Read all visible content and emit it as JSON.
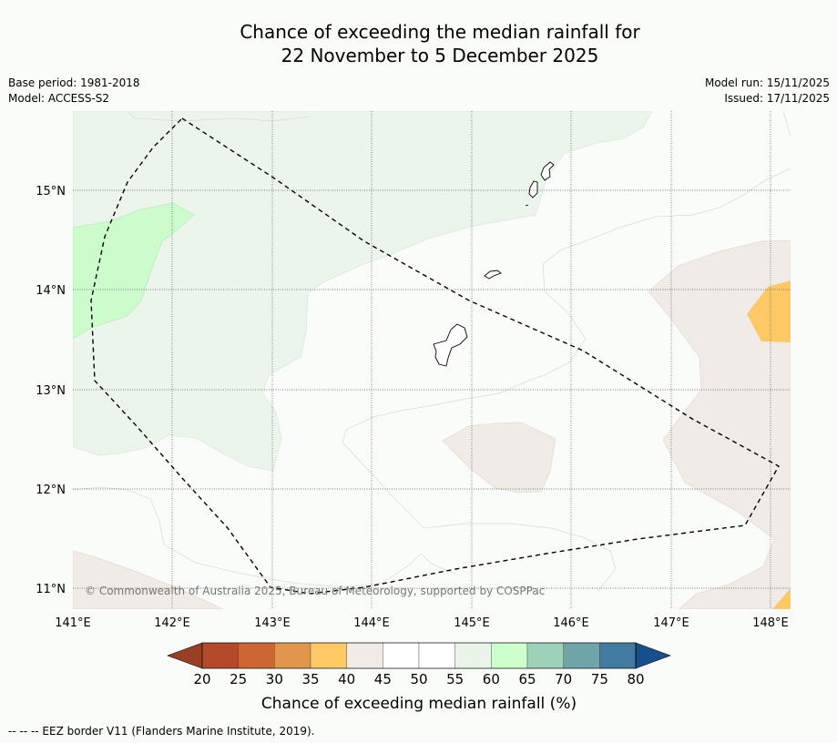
{
  "title": {
    "line1": "Chance of exceeding the median rainfall for",
    "line2": "22 November to 5 December 2025"
  },
  "meta_left": {
    "base_period": "Base period: 1981-2018",
    "model": "Model: ACCESS-S2"
  },
  "meta_right": {
    "model_run": "Model run: 15/11/2025",
    "issued": "Issued: 17/11/2025"
  },
  "map": {
    "lat_labels": [
      "15°N",
      "14°N",
      "13°N",
      "12°N",
      "11°N"
    ],
    "lon_labels": [
      "141°E",
      "142°E",
      "143°E",
      "144°E",
      "145°E",
      "146°E",
      "147°E",
      "148°E"
    ],
    "copyright": "© Commonwealth of Australia 2025, Bureau of Meteorology, supported by COSPPac"
  },
  "colorbar": {
    "ticks": [
      "20",
      "25",
      "30",
      "35",
      "40",
      "45",
      "50",
      "55",
      "60",
      "65",
      "70",
      "75",
      "80"
    ],
    "colors": [
      "#b34a29",
      "#cc6633",
      "#e0974c",
      "#fdc964",
      "#f0ebe6",
      "#ffffff",
      "#ffffff",
      "#e9f5e9",
      "#ccffcc",
      "#9dd1b8",
      "#6fa5a8",
      "#417ba0"
    ],
    "low_color": "#993f24",
    "high_color": "#174f8c",
    "title": "Chance of exceeding median rainfall (%)"
  },
  "footer": {
    "legend": "--  --  -- EEZ border V11 (Flanders Marine Institute, 2019)."
  }
}
